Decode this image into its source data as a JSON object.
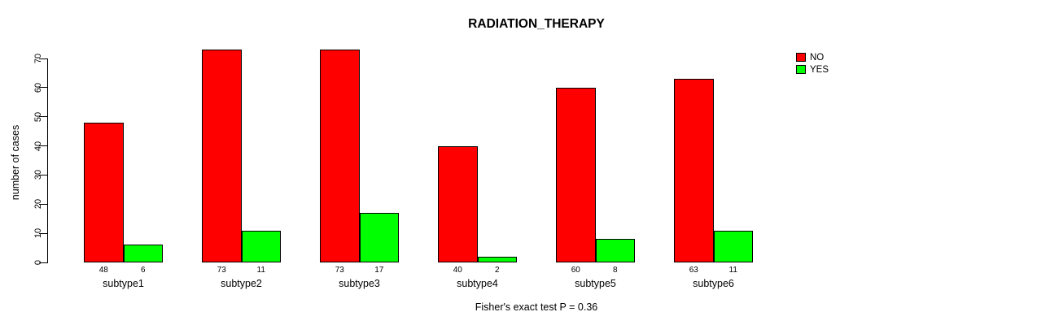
{
  "chart_data": {
    "type": "bar",
    "title": "RADIATION_THERAPY",
    "xlabel": "",
    "ylabel": "number of cases",
    "categories": [
      "subtype1",
      "subtype2",
      "subtype3",
      "subtype4",
      "subtype5",
      "subtype6"
    ],
    "series": [
      {
        "name": "NO",
        "color": "#ff0000",
        "values": [
          48,
          73,
          73,
          40,
          60,
          63
        ]
      },
      {
        "name": "YES",
        "color": "#00ff00",
        "values": [
          6,
          11,
          17,
          2,
          8,
          11
        ]
      }
    ],
    "ylim": [
      0,
      70
    ],
    "yticks": [
      0,
      10,
      20,
      30,
      40,
      50,
      60,
      70
    ],
    "grid": false,
    "legend_position": "top-right",
    "bar_value_labels": true,
    "annotation": "Fisher's exact test P = 0.36"
  }
}
